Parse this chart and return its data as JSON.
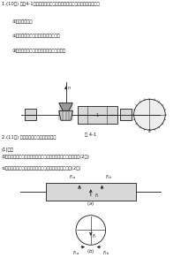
{
  "bg_color": "#ffffff",
  "dark": "#1a1a1a",
  "gray": "#888888",
  "light_gray": "#d0d0d0",
  "lw": 0.6,
  "text_color": "#1a1a1a",
  "lines": [
    "1.(10分) 如图4-1所示机器，请分析，图中轴上各齿轮的一如，试确定：",
    "①轴的应转向。",
    "②齿轮各力的大小，齿轮各力的方向。",
    "③各段轴承受的力，齿轮各处合力的方向。"
  ],
  "fig1_label": "图 4-1",
  "lines2_title": "2.(11分) 齿轮各力的动力属性和方向：",
  "lines2": [
    "(1)分：",
    "①齿轮各力大小：圆周力大小，齿轮各力大小，齿轮各力大小；(2分)",
    "②齿轮各合力的大小与方向和圆周力合力的大小与方向；(2分)"
  ]
}
